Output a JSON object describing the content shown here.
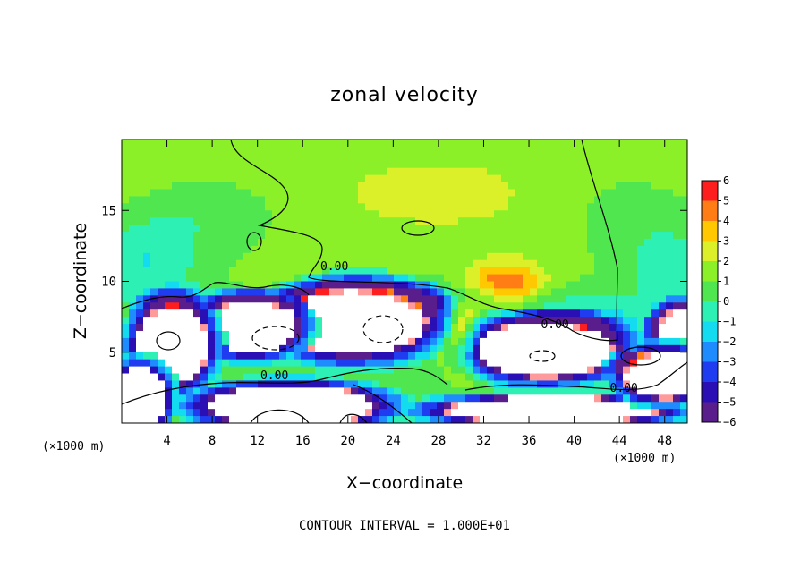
{
  "chart_data": {
    "type": "heatmap",
    "title": "zonal velocity",
    "xlabel": "X−coordinate",
    "ylabel": "Z−coordinate",
    "x_unit_left": "(×1000 m)",
    "x_unit_right": "(×1000 m)",
    "xlim": [
      0,
      50
    ],
    "ylim": [
      0,
      20
    ],
    "x_ticks": [
      4,
      8,
      12,
      16,
      20,
      24,
      28,
      32,
      36,
      40,
      44,
      48
    ],
    "y_ticks": [
      5,
      10,
      15
    ],
    "colorbar": {
      "min": -6,
      "max": 6,
      "ticks": [
        6,
        5,
        4,
        3,
        2,
        1,
        0,
        -1,
        -2,
        -3,
        -4,
        -5,
        -6
      ],
      "tick_labels": [
        "6",
        "5",
        "4",
        "3",
        "2",
        "1",
        "0",
        "−1",
        "−2",
        "−3",
        "−4",
        "−5",
        "−6"
      ]
    },
    "contour_labels": [
      {
        "text": "0.00",
        "x": 18.8,
        "z": 10.8
      },
      {
        "text": "0.00",
        "x": 13.5,
        "z": 3.1
      },
      {
        "text": "0.00",
        "x": 38.3,
        "z": 6.7
      },
      {
        "text": "0.00",
        "x": 44.4,
        "z": 2.2
      }
    ],
    "annotation": "CONTOUR INTERVAL = 1.000E+01",
    "grid": false,
    "field": {
      "background": {
        "z0": 0,
        "z1": 20,
        "bottom_value": 0.0,
        "top_value": 1.3
      },
      "features": [
        {
          "x": 20.5,
          "z": 7.2,
          "rx": 6.2,
          "rz": 2.3,
          "v": 10,
          "kind": "core"
        },
        {
          "x": 11.5,
          "z": 6.8,
          "rx": 3.8,
          "rz": 1.8,
          "v": 10,
          "kind": "core"
        },
        {
          "x": 4.5,
          "z": 5.5,
          "rx": 3.0,
          "rz": 2.7,
          "v": 10,
          "kind": "core"
        },
        {
          "x": 37.5,
          "z": 5.2,
          "rx": 5.8,
          "rz": 1.9,
          "v": 10,
          "kind": "core"
        },
        {
          "x": 49.5,
          "z": 6.3,
          "rx": 2.2,
          "rz": 1.7,
          "v": 10,
          "kind": "core"
        },
        {
          "x": 15.0,
          "z": 1.2,
          "rx": 7.0,
          "rz": 1.4,
          "v": 9,
          "kind": "core"
        },
        {
          "x": 1.5,
          "z": 1.8,
          "rx": 2.3,
          "rz": 2.0,
          "v": 9,
          "kind": "core"
        },
        {
          "x": 38.0,
          "z": 0.9,
          "rx": 9.0,
          "rz": 0.9,
          "v": 9,
          "kind": "core"
        },
        {
          "x": 48.0,
          "z": 3.4,
          "rx": 3.5,
          "rz": 1.6,
          "v": 9,
          "kind": "core"
        },
        {
          "x": 30.0,
          "z": 6.3,
          "rx": 1.3,
          "rz": 2.5,
          "v": 3.8,
          "kind": "blob"
        },
        {
          "x": 34.0,
          "z": 9.6,
          "rx": 3.2,
          "rz": 1.6,
          "v": 4.6,
          "kind": "blob"
        },
        {
          "x": 22.0,
          "z": 8.9,
          "rx": 16.0,
          "rz": 1.0,
          "v": -3.0,
          "kind": "blob"
        },
        {
          "x": 41.0,
          "z": 7.3,
          "rx": 8.0,
          "rz": 1.1,
          "v": -2.5,
          "kind": "blob"
        },
        {
          "x": 2.0,
          "z": 11.5,
          "rx": 5.0,
          "rz": 3.0,
          "v": -2.2,
          "kind": "blob"
        },
        {
          "x": 48.5,
          "z": 11.0,
          "rx": 4.0,
          "rz": 2.5,
          "v": -2.0,
          "kind": "blob"
        },
        {
          "x": 8.0,
          "z": 15.0,
          "rx": 6.0,
          "rz": 2.5,
          "v": -1.2,
          "kind": "blob"
        },
        {
          "x": 45.0,
          "z": 15.0,
          "rx": 6.0,
          "rz": 3.0,
          "v": -1.0,
          "kind": "blob"
        },
        {
          "x": 28.0,
          "z": 15.5,
          "rx": 12.0,
          "rz": 3.0,
          "v": 0.7,
          "kind": "blob"
        },
        {
          "x": 14.0,
          "z": 9.7,
          "rx": 4.0,
          "rz": 0.9,
          "v": 1.5,
          "kind": "blob"
        },
        {
          "x": 45.5,
          "z": 4.4,
          "rx": 3.0,
          "rz": 0.7,
          "v": -3.2,
          "kind": "blob"
        }
      ]
    }
  }
}
